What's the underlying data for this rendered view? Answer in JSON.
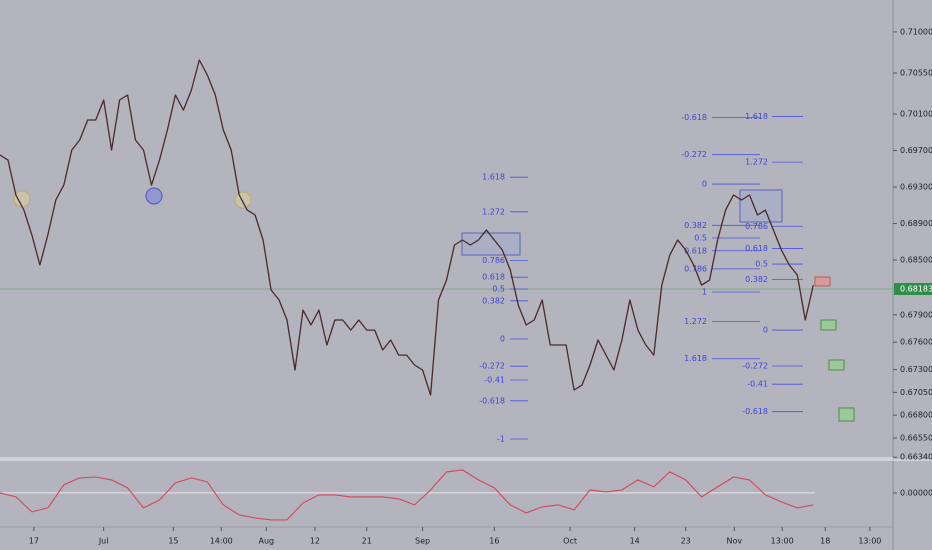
{
  "chart_data": [
    {
      "type": "line",
      "xlim": [
        0,
        112
      ],
      "ylim": [
        0.66331,
        0.7135
      ],
      "yticks": [
        {
          "value": 0.71,
          "label": "0.71000"
        },
        {
          "value": 0.7055,
          "label": "0.70550"
        },
        {
          "value": 0.701,
          "label": "0.70100"
        },
        {
          "value": 0.697,
          "label": "0.69700"
        },
        {
          "value": 0.693,
          "label": "0.69300"
        },
        {
          "value": 0.689,
          "label": "0.68900"
        },
        {
          "value": 0.685,
          "label": "0.68500"
        },
        {
          "value": 0.679,
          "label": "0.67900"
        },
        {
          "value": 0.676,
          "label": "0.67600"
        },
        {
          "value": 0.673,
          "label": "0.67300"
        },
        {
          "value": 0.6705,
          "label": "0.67050"
        },
        {
          "value": 0.668,
          "label": "0.66800"
        },
        {
          "value": 0.6655,
          "label": "0.66550"
        },
        {
          "value": 0.6634,
          "label": "0.66340"
        }
      ],
      "xticks": [
        {
          "value": 4.25,
          "label": "17"
        },
        {
          "value": 13,
          "label": "Jul"
        },
        {
          "value": 21.75,
          "label": "15"
        },
        {
          "value": 27.75,
          "label": "14:00"
        },
        {
          "value": 33.4,
          "label": "Aug"
        },
        {
          "value": 39.5,
          "label": "12"
        },
        {
          "value": 46,
          "label": "21"
        },
        {
          "value": 53,
          "label": "Sep"
        },
        {
          "value": 62,
          "label": "16"
        },
        {
          "value": 71.5,
          "label": "Oct"
        },
        {
          "value": 79.6,
          "label": "14"
        },
        {
          "value": 86,
          "label": "23"
        },
        {
          "value": 92.1,
          "label": "Nov"
        },
        {
          "value": 98.1,
          "label": "13:00"
        },
        {
          "value": 103.5,
          "label": "18"
        },
        {
          "value": 109.1,
          "label": "13:00"
        }
      ],
      "last_price": {
        "value": 0.68183,
        "label": "0.68183"
      },
      "series": [
        {
          "color": "#4a2a2a",
          "values": [
            0.69651,
            0.69596,
            0.69213,
            0.69048,
            0.68774,
            0.68446,
            0.68774,
            0.69158,
            0.69322,
            0.69706,
            0.69816,
            0.70035,
            0.70035,
            0.70254,
            0.69706,
            0.70254,
            0.70309,
            0.69816,
            0.69706,
            0.69322,
            0.69596,
            0.69925,
            0.70309,
            0.70144,
            0.70364,
            0.70692,
            0.70528,
            0.70309,
            0.69925,
            0.69706,
            0.69213,
            0.69048,
            0.68994,
            0.6872,
            0.68172,
            0.68062,
            0.67843,
            0.67295,
            0.67952,
            0.67788,
            0.67952,
            0.67569,
            0.67843,
            0.67843,
            0.67733,
            0.67843,
            0.67733,
            0.67733,
            0.67514,
            0.67624,
            0.67459,
            0.67459,
            0.6735,
            0.67295,
            0.67021,
            0.68062,
            0.68281,
            0.68665,
            0.6872,
            0.68665,
            0.6872,
            0.68829,
            0.6872,
            0.6861,
            0.68391,
            0.68007,
            0.67788,
            0.67843,
            0.68062,
            0.67569,
            0.67569,
            0.67569,
            0.67076,
            0.6713,
            0.6735,
            0.67624,
            0.67459,
            0.67295,
            0.67624,
            0.68062,
            0.67733,
            0.67569,
            0.67459,
            0.68226,
            0.68555,
            0.6872,
            0.6861,
            0.68446,
            0.68226,
            0.68281,
            0.6872,
            0.69048,
            0.69213,
            0.69158,
            0.69213,
            0.68994,
            0.69048,
            0.68829,
            0.6861,
            0.68446,
            0.68336,
            0.67843,
            0.68226
          ]
        }
      ],
      "fibonacci": [
        {
          "price_at_0": 0.67635,
          "price_at_1": 0.68731,
          "levels": [
            1.618,
            1.272,
            0.786,
            0.618,
            0.5,
            0.382,
            0,
            -0.272,
            -0.41,
            -0.618,
            -1
          ]
        },
        {
          "price_at_0": 0.69333,
          "price_at_1": 0.6815,
          "levels": [
            -0.618,
            -0.272,
            0,
            0.382,
            0.5,
            0.618,
            0.786,
            1,
            1.272,
            1.618
          ]
        },
        {
          "price_at_0": 0.67733,
          "price_at_1": 0.6918,
          "levels": [
            1.618,
            1.272,
            0.786,
            0.618,
            0.5,
            0.382,
            0,
            -0.272,
            -0.41,
            -0.618
          ]
        }
      ]
    },
    {
      "type": "line",
      "xlim": [
        0,
        56
      ],
      "ylim": [
        -0.0069,
        0.004
      ],
      "yticks": [
        {
          "value": 0,
          "label": "0.00000"
        }
      ],
      "series": [
        {
          "color": "#d04a5a",
          "values": [
            0,
            -0.0005,
            -0.00238,
            -0.00188,
            0.001,
            0.00188,
            0.002,
            0.00163,
            0.00063,
            -0.00188,
            -0.00088,
            0.00125,
            0.00188,
            0.00138,
            -0.0015,
            -0.00275,
            -0.00313,
            -0.00338,
            -0.00338,
            -0.00125,
            -0.00025,
            -0.00025,
            -0.0005,
            -0.0005,
            -0.0005,
            -0.00075,
            -0.0015,
            0.00038,
            0.00263,
            0.00288,
            0.00163,
            0.00063,
            -0.0015,
            -0.0025,
            -0.00175,
            -0.0015,
            -0.00213,
            0.00038,
            0.00013,
            0.00038,
            0.00163,
            0.00075,
            0.00263,
            0.00163,
            -0.0005,
            0.00075,
            0.002,
            0.00163,
            -0.00025,
            -0.00113,
            -0.00188,
            -0.0015
          ]
        }
      ]
    }
  ]
}
